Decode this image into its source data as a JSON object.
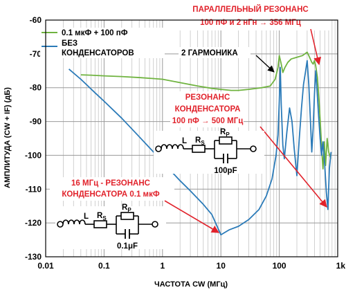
{
  "chart_data": {
    "type": "line",
    "xlabel": "ЧАСТОТА CW (МГц)",
    "ylabel": "АМПЛИТУДА (CW + IF) (дБ)",
    "xscale": "log",
    "xlim": [
      0.01,
      1000
    ],
    "ylim": [
      -130,
      -60
    ],
    "x_ticks": [
      "0.01",
      "0.1",
      "1",
      "10",
      "100",
      "1k"
    ],
    "y_ticks": [
      "-60",
      "-70",
      "-80",
      "-90",
      "-100",
      "-110",
      "-120",
      "-130"
    ],
    "grid": true,
    "legend_position": "top-left",
    "series": [
      {
        "name": "0.1 мкФ + 100 пФ",
        "color": "#6fb33f",
        "points": [
          [
            0.04,
            -76.2
          ],
          [
            0.06,
            -76.3
          ],
          [
            0.1,
            -76.5
          ],
          [
            0.2,
            -76.7
          ],
          [
            0.4,
            -77
          ],
          [
            0.7,
            -77.3
          ],
          [
            1,
            -77.5
          ],
          [
            2,
            -78.5
          ],
          [
            4,
            -79.5
          ],
          [
            7,
            -80.2
          ],
          [
            10,
            -80.5
          ],
          [
            15,
            -80.8
          ],
          [
            20,
            -80.8
          ],
          [
            30,
            -80.5
          ],
          [
            50,
            -80
          ],
          [
            70,
            -79.5
          ],
          [
            85,
            -77.5
          ],
          [
            95,
            -74
          ],
          [
            100,
            -70.5
          ],
          [
            108,
            -73
          ],
          [
            115,
            -75.5
          ],
          [
            125,
            -74
          ],
          [
            140,
            -72.5
          ],
          [
            160,
            -71.5
          ],
          [
            200,
            -71
          ],
          [
            250,
            -70.5
          ],
          [
            300,
            -69.5
          ],
          [
            330,
            -71
          ],
          [
            360,
            -72.5
          ],
          [
            380,
            -73
          ],
          [
            400,
            -72
          ],
          [
            420,
            -73.5
          ],
          [
            450,
            -77
          ],
          [
            480,
            -84
          ],
          [
            510,
            -92
          ],
          [
            540,
            -100
          ],
          [
            560,
            -104
          ],
          [
            590,
            -96
          ],
          [
            620,
            -103
          ],
          [
            660,
            -95
          ],
          [
            700,
            -99
          ],
          [
            760,
            -101
          ]
        ]
      },
      {
        "name": "БЕЗ КОНДЕНСАТОРОВ",
        "color": "#2a7ab8",
        "points": [
          [
            0.025,
            -74.5
          ],
          [
            0.04,
            -77.5
          ],
          [
            0.07,
            -81.5
          ],
          [
            0.1,
            -84
          ],
          [
            0.2,
            -89
          ],
          [
            0.4,
            -94.5
          ],
          [
            0.7,
            -99
          ],
          [
            1,
            -102
          ],
          [
            2,
            -107.5
          ],
          [
            3,
            -110.5
          ],
          [
            5,
            -114.5
          ],
          [
            7,
            -117.5
          ],
          [
            10,
            -123.5
          ],
          [
            14,
            -122
          ],
          [
            20,
            -121
          ],
          [
            30,
            -119
          ],
          [
            45,
            -116
          ],
          [
            60,
            -112
          ],
          [
            75,
            -107
          ],
          [
            88,
            -100
          ],
          [
            95,
            -94
          ],
          [
            100,
            -84
          ],
          [
            104,
            -74
          ],
          [
            108,
            -85
          ],
          [
            115,
            -97
          ],
          [
            122,
            -101
          ],
          [
            135,
            -93
          ],
          [
            150,
            -86
          ],
          [
            165,
            -90
          ],
          [
            180,
            -98
          ],
          [
            200,
            -106
          ],
          [
            220,
            -95
          ],
          [
            240,
            -86
          ],
          [
            260,
            -79
          ],
          [
            280,
            -75.5
          ],
          [
            300,
            -72
          ],
          [
            320,
            -79
          ],
          [
            340,
            -89
          ],
          [
            360,
            -99
          ],
          [
            380,
            -92
          ],
          [
            400,
            -82
          ],
          [
            420,
            -75
          ],
          [
            440,
            -80
          ],
          [
            470,
            -88
          ],
          [
            500,
            -95
          ],
          [
            530,
            -100
          ],
          [
            560,
            -96
          ],
          [
            600,
            -103
          ],
          [
            640,
            -111
          ],
          [
            680,
            -116
          ],
          [
            720,
            -104
          ],
          [
            770,
            -99
          ]
        ]
      }
    ],
    "annotations": [
      {
        "text": [
          "ПАРАЛЛЕЛЬНЫЙ РЕЗОНАНС",
          "100 пФ и 2 нГн → 356 МГц"
        ],
        "color": "#e1222b"
      },
      {
        "text": [
          "2 ГАРМОНИКА"
        ],
        "color": "#000000"
      },
      {
        "text": [
          "РЕЗОНАНС",
          "КОНДЕНСАТОРА",
          "100 пФ → 500 МГц"
        ],
        "color": "#e1222b"
      },
      {
        "text": [
          "16 МГц - РЕЗОНАНС",
          "КОНДЕНСАТОРА 0.1 мкФ"
        ],
        "color": "#e1222b"
      }
    ]
  },
  "circuits": [
    {
      "L": "L",
      "Rs": "R",
      "Rs_sub": "S",
      "Rp": "R",
      "Rp_sub": "P",
      "C": "100pF"
    },
    {
      "L": "L",
      "Rs": "R",
      "Rs_sub": "S",
      "Rp": "R",
      "Rp_sub": "P",
      "C": "0.1μF"
    }
  ]
}
